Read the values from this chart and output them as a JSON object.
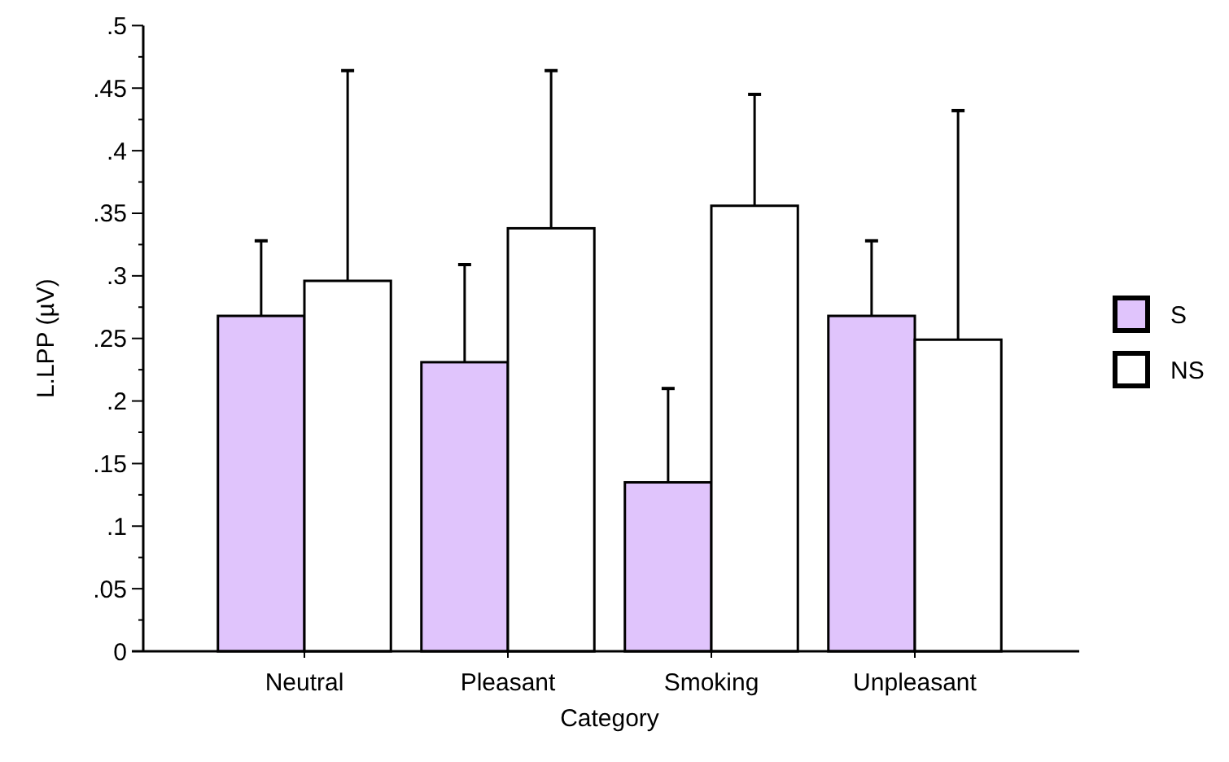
{
  "chart_data": {
    "type": "bar",
    "xlabel": "Category",
    "ylabel": "L.LPP (µV)",
    "categories": [
      "Neutral",
      "Pleasant",
      "Smoking",
      "Unpleasant"
    ],
    "series": [
      {
        "name": "S",
        "color": "#e0c4fc",
        "values": [
          0.268,
          0.231,
          0.135,
          0.268
        ],
        "errors": [
          [
            0.268,
            0.328
          ],
          [
            0.231,
            0.309
          ],
          [
            0.135,
            0.21
          ],
          [
            0.268,
            0.328
          ]
        ]
      },
      {
        "name": "NS",
        "color": "#ffffff",
        "values": [
          0.296,
          0.338,
          0.356,
          0.249
        ],
        "errors": [
          [
            0.296,
            0.464
          ],
          [
            0.338,
            0.464
          ],
          [
            0.356,
            0.445
          ],
          [
            0.249,
            0.432
          ]
        ]
      }
    ],
    "ylim": [
      0,
      0.5
    ],
    "yticks": [
      {
        "value": 0,
        "label": "0"
      },
      {
        "value": 0.025,
        "label": null
      },
      {
        "value": 0.05,
        "label": ".05"
      },
      {
        "value": 0.075,
        "label": null
      },
      {
        "value": 0.1,
        "label": ".1"
      },
      {
        "value": 0.125,
        "label": null
      },
      {
        "value": 0.15,
        "label": ".15"
      },
      {
        "value": 0.175,
        "label": null
      },
      {
        "value": 0.2,
        "label": ".2"
      },
      {
        "value": 0.225,
        "label": null
      },
      {
        "value": 0.25,
        "label": ".25"
      },
      {
        "value": 0.275,
        "label": null
      },
      {
        "value": 0.3,
        "label": ".3"
      },
      {
        "value": 0.325,
        "label": null
      },
      {
        "value": 0.35,
        "label": ".35"
      },
      {
        "value": 0.375,
        "label": null
      },
      {
        "value": 0.4,
        "label": ".4"
      },
      {
        "value": 0.425,
        "label": null
      },
      {
        "value": 0.45,
        "label": ".45"
      },
      {
        "value": 0.475,
        "label": null
      },
      {
        "value": 0.5,
        "label": ".5"
      }
    ],
    "legend": "right"
  }
}
